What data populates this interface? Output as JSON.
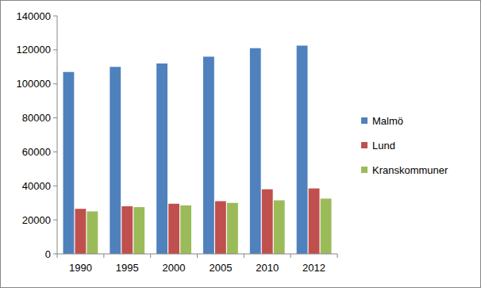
{
  "chart_data": {
    "type": "bar",
    "categories": [
      "1990",
      "1995",
      "2000",
      "2005",
      "2010",
      "2012"
    ],
    "series": [
      {
        "name": "Malmö",
        "color": "#4f81bd",
        "values": [
          107000,
          110000,
          112000,
          116000,
          121000,
          122500
        ]
      },
      {
        "name": "Lund",
        "color": "#c0504d",
        "values": [
          26500,
          28000,
          29500,
          31000,
          38000,
          38500
        ]
      },
      {
        "name": "Kranskommuner",
        "color": "#9bbb59",
        "values": [
          25000,
          27500,
          28500,
          30000,
          31500,
          32500
        ]
      }
    ],
    "ylim": [
      0,
      140000
    ],
    "yticks": [
      0,
      20000,
      40000,
      60000,
      80000,
      100000,
      120000,
      140000
    ],
    "grid": false,
    "legend": "right"
  }
}
